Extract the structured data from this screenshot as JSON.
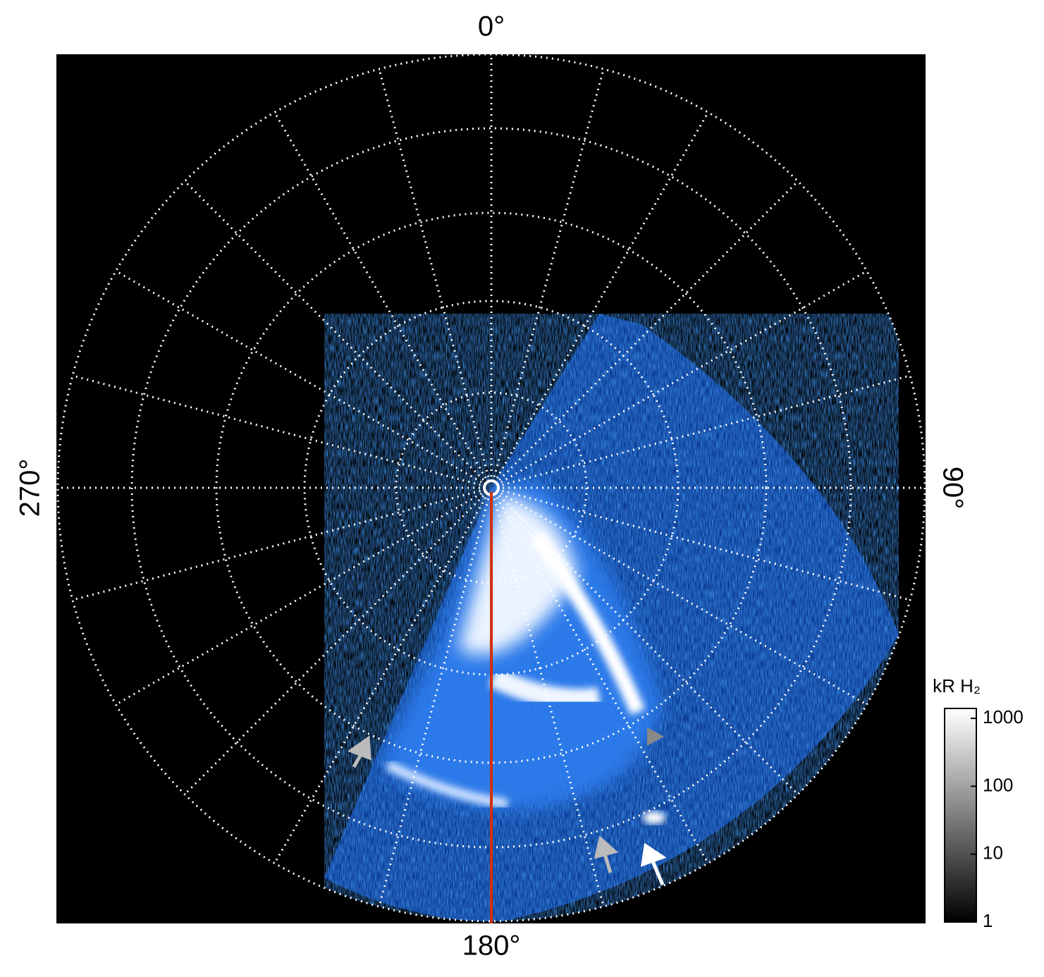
{
  "chart_data": {
    "type": "polar-image",
    "angle_ticks": [
      {
        "value": 0,
        "label": "0°"
      },
      {
        "value": 90,
        "label": "90°"
      },
      {
        "value": 180,
        "label": "180°"
      },
      {
        "value": 270,
        "label": "270°"
      }
    ],
    "colorbar": {
      "label": "kR H₂",
      "log": true,
      "lim": [
        1,
        1400
      ],
      "ticks": [
        1,
        10,
        100,
        1000
      ]
    }
  }
}
